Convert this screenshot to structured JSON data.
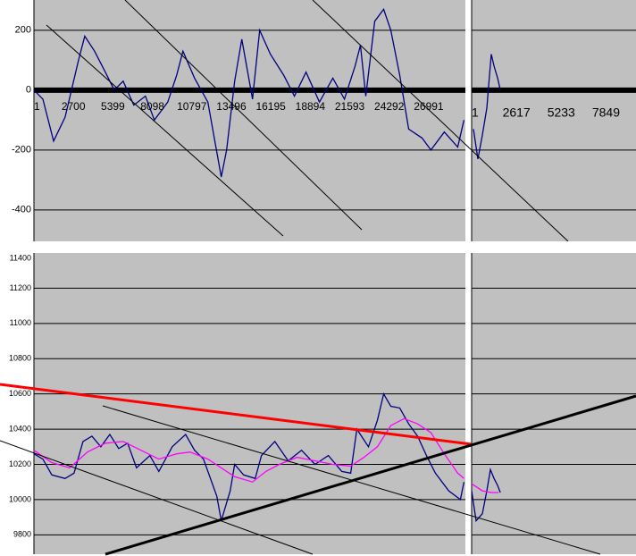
{
  "chart_data": [
    {
      "type": "line",
      "xlim": [
        1,
        29500
      ],
      "ylim": [
        -505,
        301
      ],
      "yticks": [
        -400,
        -200,
        0,
        200
      ],
      "xticks": [
        1,
        2700,
        5399,
        8098,
        10797,
        13496,
        16195,
        18894,
        21593,
        24292,
        26991
      ],
      "grid": true,
      "axis_line": true,
      "series": [
        {
          "color": "#000080",
          "x": [
            1,
            610,
            1342,
            2135,
            3050,
            3477,
            4148,
            4880,
            5490,
            6100,
            6832,
            7625,
            8235,
            9150,
            9760,
            10187,
            10980,
            11895,
            12810,
            13176,
            13725,
            14213,
            14945,
            15433,
            16165,
            17080,
            17812,
            18605,
            19520,
            20435,
            21228,
            21960,
            22326,
            22692,
            23302,
            23912,
            24400,
            25010,
            25620,
            26535,
            27145,
            28060,
            28975,
            29402
          ],
          "values": [
            0,
            -30,
            -170,
            -90,
            100,
            180,
            130,
            60,
            0,
            30,
            -50,
            -20,
            -100,
            -40,
            50,
            130,
            40,
            -40,
            -290,
            -200,
            30,
            170,
            -30,
            200,
            120,
            50,
            -20,
            60,
            -40,
            40,
            -30,
            80,
            150,
            -20,
            230,
            270,
            200,
            50,
            -130,
            -160,
            -200,
            -140,
            -190,
            -100
          ]
        }
      ]
    },
    {
      "type": "line",
      "xlim": [
        1,
        9600
      ],
      "ylim": [
        -505,
        301
      ],
      "xticks": [
        1,
        2617,
        5233,
        7849
      ],
      "axis_line": true,
      "series": [
        {
          "color": "#000080",
          "x": [
            105,
            366,
            628,
            889,
            1046,
            1151,
            1308,
            1517,
            1674
          ],
          "values": [
            -130,
            -230,
            -150,
            -60,
            50,
            120,
            80,
            40,
            0
          ]
        }
      ]
    },
    {
      "type": "line",
      "xlim": [
        1,
        29500
      ],
      "ylim": [
        9690,
        11400
      ],
      "yticks": [
        9800,
        10000,
        10200,
        10400,
        10600,
        10800,
        11000,
        11200,
        11400
      ],
      "grid": true,
      "series": [
        {
          "color": "#000080",
          "x": [
            1,
            610,
            1220,
            2135,
            2745,
            3355,
            3965,
            4575,
            5185,
            5795,
            6405,
            7015,
            7930,
            8540,
            9455,
            10370,
            10980,
            11590,
            12505,
            12810,
            13420,
            13725,
            14335,
            15128,
            15555,
            16470,
            17385,
            18300,
            19215,
            20130,
            21045,
            21655,
            22082,
            22875,
            23485,
            23912,
            24400,
            25010,
            25620,
            26230,
            26840,
            27450,
            28365,
            29158,
            29402
          ],
          "values": [
            10260,
            10230,
            10140,
            10120,
            10150,
            10330,
            10360,
            10300,
            10370,
            10290,
            10320,
            10180,
            10250,
            10160,
            10300,
            10370,
            10280,
            10230,
            10020,
            9880,
            10050,
            10200,
            10140,
            10120,
            10250,
            10330,
            10220,
            10280,
            10200,
            10250,
            10160,
            10150,
            10400,
            10300,
            10450,
            10600,
            10530,
            10520,
            10430,
            10360,
            10250,
            10150,
            10050,
            10000,
            10100
          ]
        },
        {
          "color": "#ff00ff",
          "x": [
            1,
            1220,
            2440,
            3660,
            4880,
            6100,
            7320,
            8540,
            9760,
            10675,
            11895,
            12810,
            13725,
            14945,
            15860,
            16775,
            17995,
            19215,
            20435,
            21655,
            22570,
            23485,
            24400,
            25315,
            26230,
            27145,
            28060,
            28975,
            29402
          ],
          "values": [
            10280,
            10210,
            10180,
            10270,
            10320,
            10330,
            10280,
            10230,
            10260,
            10270,
            10230,
            10180,
            10130,
            10100,
            10160,
            10200,
            10240,
            10220,
            10200,
            10190,
            10240,
            10300,
            10420,
            10460,
            10430,
            10380,
            10260,
            10150,
            10120
          ]
        }
      ]
    },
    {
      "type": "line",
      "xlim": [
        1,
        9600
      ],
      "ylim": [
        9690,
        11400
      ],
      "series": [
        {
          "color": "#000080",
          "x": [
            1,
            262,
            628,
            889,
            1098,
            1308,
            1517,
            1674
          ],
          "values": [
            10050,
            9880,
            9920,
            10050,
            10170,
            10120,
            10080,
            10040
          ]
        },
        {
          "color": "#ff00ff",
          "x": [
            1,
            628,
            1151,
            1569
          ],
          "values": [
            10090,
            10050,
            10040,
            10040
          ]
        }
      ]
    }
  ]
}
